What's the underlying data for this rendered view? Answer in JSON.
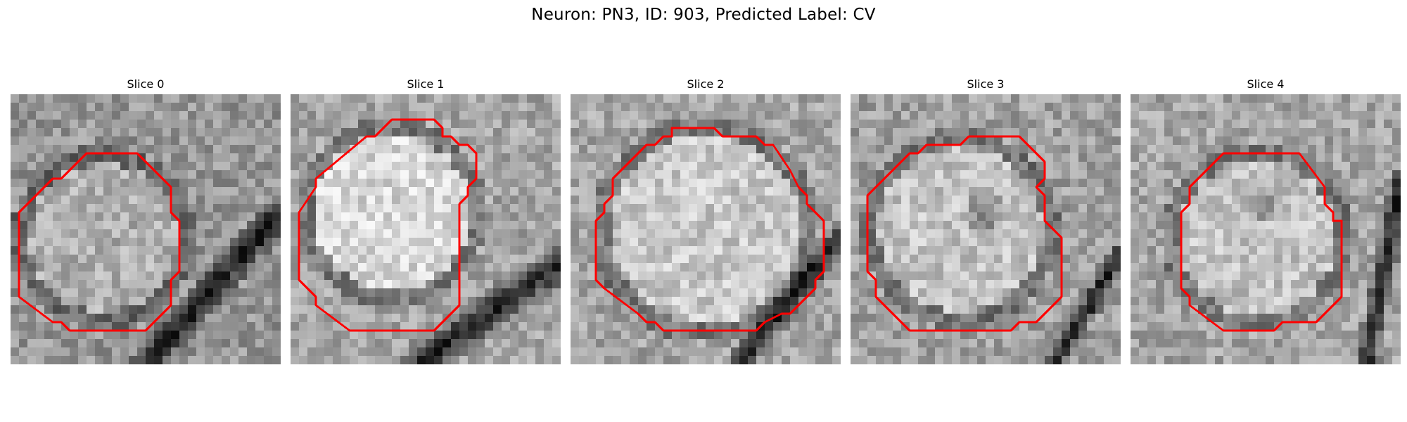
{
  "figure": {
    "title": "Neuron: PN3, ID: 903, Predicted Label: CV"
  },
  "panels": [
    {
      "title": "Slice 0"
    },
    {
      "title": "Slice 1"
    },
    {
      "title": "Slice 2"
    },
    {
      "title": "Slice 3"
    },
    {
      "title": "Slice 4"
    }
  ],
  "colors": {
    "contour": "#ff0000",
    "background": "#ffffff"
  }
}
